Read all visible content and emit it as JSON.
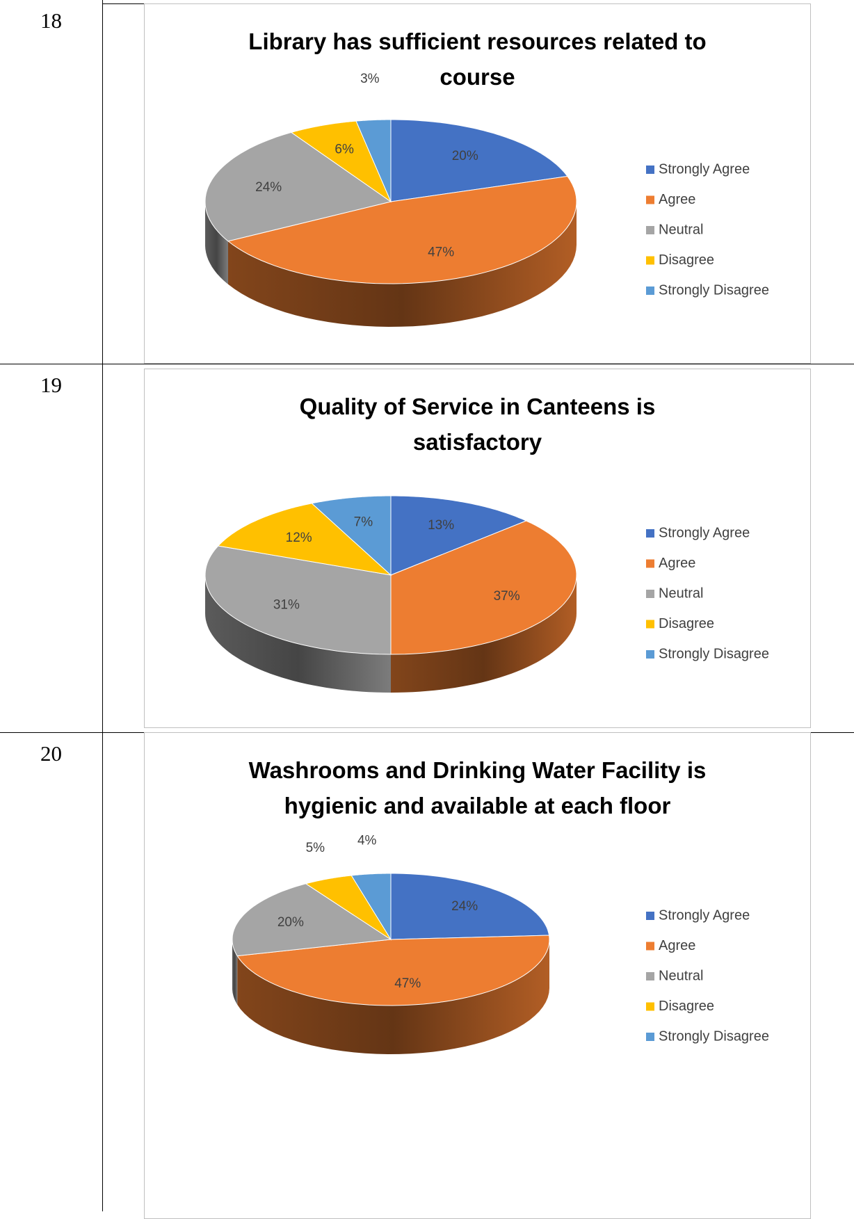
{
  "table": {
    "rows": [
      {
        "number": "18"
      },
      {
        "number": "19"
      },
      {
        "number": "20"
      }
    ]
  },
  "chart_data": [
    {
      "type": "pie",
      "title": "Library has sufficient resources related to course",
      "categories": [
        "Strongly Agree",
        "Agree",
        "Neutral",
        "Disagree",
        "Strongly Disagree"
      ],
      "values": [
        20,
        47,
        24,
        6,
        3
      ],
      "value_labels": [
        "20%",
        "47%",
        "24%",
        "6%",
        "3%"
      ],
      "colors": [
        "#4472c4",
        "#ed7d31",
        "#a5a5a5",
        "#ffc000",
        "#5b9bd5"
      ],
      "legend": "right"
    },
    {
      "type": "pie",
      "title": "Quality of Service in Canteens is satisfactory",
      "categories": [
        "Strongly Agree",
        "Agree",
        "Neutral",
        "Disagree",
        "Strongly Disagree"
      ],
      "values": [
        13,
        37,
        31,
        12,
        7
      ],
      "value_labels": [
        "13%",
        "37%",
        "31%",
        "12%",
        "7%"
      ],
      "colors": [
        "#4472c4",
        "#ed7d31",
        "#a5a5a5",
        "#ffc000",
        "#5b9bd5"
      ],
      "legend": "right"
    },
    {
      "type": "pie",
      "title": "Washrooms and Drinking Water Facility is hygienic and available at each floor",
      "categories": [
        "Strongly Agree",
        "Agree",
        "Neutral",
        "Disagree",
        "Strongly Disagree"
      ],
      "values": [
        24,
        47,
        20,
        5,
        4
      ],
      "value_labels": [
        "24%",
        "47%",
        "20%",
        "5%",
        "4%"
      ],
      "colors": [
        "#4472c4",
        "#ed7d31",
        "#a5a5a5",
        "#ffc000",
        "#5b9bd5"
      ],
      "legend": "right"
    }
  ]
}
